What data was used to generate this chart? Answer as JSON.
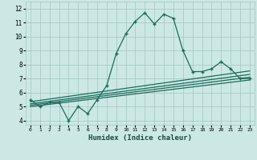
{
  "xlabel": "Humidex (Indice chaleur)",
  "xlim": [
    -0.5,
    23.5
  ],
  "ylim": [
    3.7,
    12.5
  ],
  "xticks": [
    0,
    1,
    2,
    3,
    4,
    5,
    6,
    7,
    8,
    9,
    10,
    11,
    12,
    13,
    14,
    15,
    16,
    17,
    18,
    19,
    20,
    21,
    22,
    23
  ],
  "yticks": [
    4,
    5,
    6,
    7,
    8,
    9,
    10,
    11,
    12
  ],
  "bg_color": "#cce8e4",
  "grid_color": "#a0c8c0",
  "line_color": "#1a6b5a",
  "main_line": {
    "x": [
      0,
      1,
      2,
      3,
      4,
      5,
      6,
      7,
      8,
      9,
      10,
      11,
      12,
      13,
      14,
      15,
      16,
      17,
      18,
      19,
      20,
      21,
      22,
      23
    ],
    "y": [
      5.5,
      5.0,
      5.3,
      5.3,
      4.0,
      5.0,
      4.5,
      5.5,
      6.5,
      8.8,
      10.2,
      11.1,
      11.7,
      10.9,
      11.6,
      11.3,
      9.0,
      7.5,
      7.5,
      7.7,
      8.2,
      7.7,
      7.0,
      7.0
    ]
  },
  "flat_lines": [
    {
      "x": [
        0,
        23
      ],
      "y": [
        5.0,
        6.9
      ]
    },
    {
      "x": [
        0,
        23
      ],
      "y": [
        5.1,
        7.1
      ]
    },
    {
      "x": [
        0,
        23
      ],
      "y": [
        5.2,
        7.3
      ]
    },
    {
      "x": [
        0,
        23
      ],
      "y": [
        5.35,
        7.55
      ]
    }
  ]
}
